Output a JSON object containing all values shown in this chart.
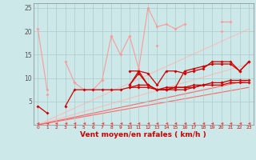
{
  "xlabel": "Vent moyen/en rafales ( km/h )",
  "background_color": "#cce8e8",
  "grid_color": "#aacccc",
  "x": [
    0,
    1,
    2,
    3,
    4,
    5,
    6,
    7,
    8,
    9,
    10,
    11,
    12,
    13,
    14,
    15,
    16,
    17,
    18,
    19,
    20,
    21,
    22,
    23
  ],
  "ylim": [
    0,
    26
  ],
  "xlim": [
    -0.5,
    23.5
  ],
  "yticks": [
    0,
    5,
    10,
    15,
    20,
    25
  ],
  "series": [
    {
      "y": [
        20.5,
        7.5,
        null,
        null,
        null,
        null,
        null,
        null,
        null,
        null,
        null,
        null,
        null,
        null,
        null,
        null,
        null,
        null,
        null,
        null,
        20.0,
        null,
        null,
        null
      ],
      "color": "#ff9999",
      "lw": 0.8,
      "marker": "D",
      "ms": 2.0
    },
    {
      "y": [
        null,
        6.5,
        null,
        13.5,
        9.0,
        7.5,
        7.5,
        9.5,
        19.0,
        15.0,
        19.0,
        12.0,
        25.0,
        21.0,
        21.5,
        20.5,
        21.5,
        null,
        null,
        null,
        22.0,
        22.0,
        null,
        null
      ],
      "color": "#ff9999",
      "lw": 0.8,
      "marker": "D",
      "ms": 2.0
    },
    {
      "y": [
        null,
        null,
        null,
        null,
        null,
        null,
        null,
        null,
        null,
        null,
        null,
        null,
        null,
        17.0,
        null,
        null,
        null,
        null,
        null,
        null,
        null,
        null,
        null,
        null
      ],
      "color": "#ff9999",
      "lw": 0.8,
      "marker": "D",
      "ms": 2.0
    },
    {
      "y": [
        null,
        null,
        null,
        null,
        null,
        null,
        null,
        null,
        null,
        null,
        11.5,
        11.5,
        11.0,
        8.5,
        11.5,
        11.5,
        11.0,
        11.5,
        12.0,
        13.5,
        13.5,
        13.5,
        11.5,
        13.5
      ],
      "color": "#cc0000",
      "lw": 0.9,
      "marker": "D",
      "ms": 2.0
    },
    {
      "y": [
        4.0,
        2.5,
        null,
        4.0,
        7.5,
        7.5,
        7.5,
        7.5,
        7.5,
        7.5,
        8.0,
        8.5,
        8.5,
        7.5,
        7.5,
        8.0,
        8.0,
        8.0,
        8.5,
        null,
        9.0,
        null,
        null,
        null
      ],
      "color": "#cc0000",
      "lw": 0.9,
      "marker": "D",
      "ms": 2.0
    },
    {
      "y": [
        null,
        null,
        null,
        null,
        null,
        null,
        null,
        null,
        null,
        null,
        8.5,
        11.5,
        8.5,
        7.5,
        8.0,
        8.0,
        11.5,
        12.0,
        12.5,
        13.0,
        13.0,
        13.0,
        11.5,
        13.5
      ],
      "color": "#cc0000",
      "lw": 0.9,
      "marker": "D",
      "ms": 2.0
    },
    {
      "y": [
        null,
        null,
        null,
        null,
        null,
        null,
        null,
        null,
        null,
        null,
        8.5,
        11.0,
        8.5,
        7.5,
        7.5,
        8.0,
        8.0,
        8.5,
        8.5,
        9.0,
        9.0,
        9.5,
        9.5,
        9.5
      ],
      "color": "#cc0000",
      "lw": 0.9,
      "marker": "D",
      "ms": 2.0
    },
    {
      "y": [
        null,
        null,
        null,
        null,
        null,
        null,
        null,
        null,
        null,
        null,
        8.0,
        8.0,
        8.0,
        7.5,
        7.5,
        7.5,
        7.5,
        8.0,
        8.5,
        8.5,
        8.5,
        9.0,
        9.0,
        9.0
      ],
      "color": "#cc0000",
      "lw": 0.9,
      "marker": "D",
      "ms": 2.0
    },
    {
      "y": [
        0.4,
        0.4,
        0.4,
        0.4,
        0.4,
        0.4,
        0.4,
        0.4,
        0.4,
        0.4,
        0.4,
        0.4,
        0.4,
        0.4,
        0.4,
        0.4,
        0.4,
        0.4,
        0.4,
        0.4,
        0.4,
        0.4,
        0.4,
        0.4
      ],
      "color": "#ff4444",
      "lw": 0.5,
      "marker": "<",
      "ms": 2.5,
      "no_line": true
    }
  ],
  "linear_series": [
    {
      "x0": 0,
      "y0": 0.0,
      "x1": 23,
      "y1": 20.5,
      "color": "#ffbbbb",
      "lw": 0.8
    },
    {
      "x0": 0,
      "y0": 0.0,
      "x1": 23,
      "y1": 13.0,
      "color": "#ffbbbb",
      "lw": 0.8
    },
    {
      "x0": 0,
      "y0": 0.0,
      "x1": 23,
      "y1": 9.5,
      "color": "#ff6666",
      "lw": 0.8
    },
    {
      "x0": 0,
      "y0": 0.0,
      "x1": 23,
      "y1": 8.0,
      "color": "#ff6666",
      "lw": 0.8
    }
  ]
}
